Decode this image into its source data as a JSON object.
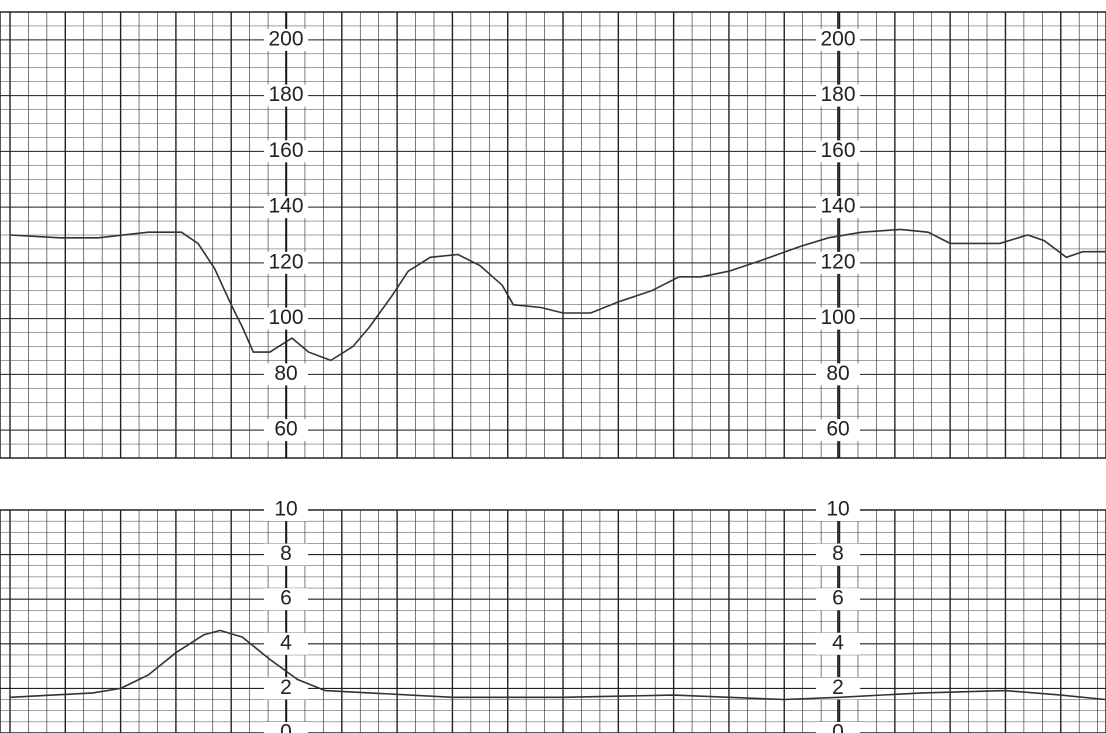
{
  "chart_data": [
    {
      "type": "line",
      "color": "#333333",
      "x": [
        0,
        0.9,
        1.6,
        2.5,
        3.1,
        3.4,
        3.7,
        4.0,
        4.2,
        4.4,
        4.7,
        5.1,
        5.4,
        5.8,
        6.2,
        6.5,
        6.9,
        7.2,
        7.6,
        8.1,
        8.5,
        8.9,
        9.1,
        9.6,
        10.0,
        10.5,
        11.0,
        11.6,
        12.1,
        12.5,
        13.0,
        13.6,
        14.3,
        14.8,
        15.4,
        16.1,
        16.6,
        17.0,
        17.9,
        18.4,
        18.7,
        19.1,
        19.4,
        19.8
      ],
      "values": [
        130,
        129,
        129,
        131,
        131,
        127,
        118,
        105,
        97,
        88,
        88,
        93,
        88,
        85,
        90,
        97,
        108,
        117,
        122,
        123,
        119,
        112,
        105,
        104,
        102,
        102,
        106,
        110,
        115,
        115,
        117,
        121,
        126,
        129,
        131,
        132,
        131,
        127,
        127,
        130,
        128,
        122,
        124,
        124
      ],
      "xlim": [
        0,
        19.8
      ],
      "ylim": [
        50,
        210
      ],
      "yticks": [
        60,
        80,
        100,
        120,
        140,
        160,
        180,
        200
      ],
      "grid": true
    },
    {
      "type": "line",
      "color": "#333333",
      "x": [
        0,
        1.5,
        2.0,
        2.5,
        3.0,
        3.5,
        3.8,
        4.2,
        4.7,
        5.2,
        5.7,
        6.5,
        8.0,
        10.0,
        12.0,
        14.0,
        15.0,
        16.5,
        18.0,
        19.0,
        19.8
      ],
      "values": [
        1.6,
        1.8,
        2.0,
        2.6,
        3.6,
        4.4,
        4.6,
        4.3,
        3.3,
        2.4,
        1.9,
        1.8,
        1.6,
        1.6,
        1.7,
        1.5,
        1.6,
        1.8,
        1.9,
        1.7,
        1.5
      ],
      "xlim": [
        0,
        19.8
      ],
      "ylim": [
        0,
        10
      ],
      "yticks": [
        0,
        2,
        4,
        6,
        8,
        10
      ],
      "grid": true
    }
  ]
}
